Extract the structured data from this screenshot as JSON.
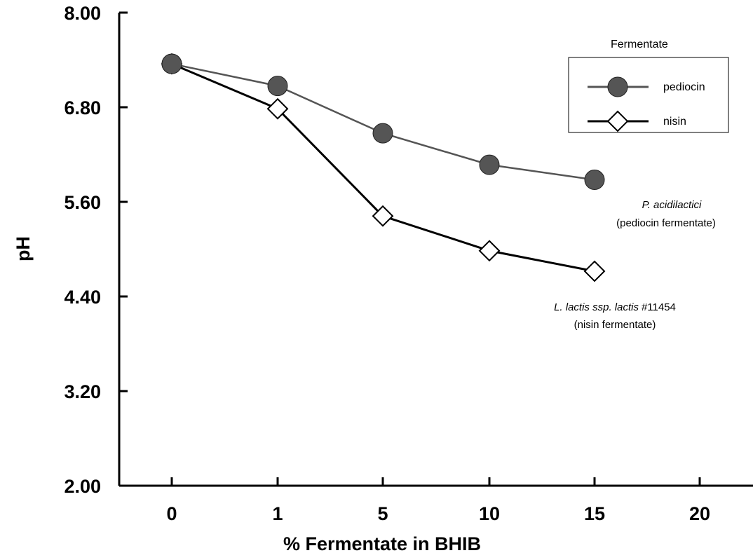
{
  "chart_data": {
    "type": "line",
    "xlabel": "% Fermentate in BHIB",
    "ylabel": "pH",
    "categories": [
      "0",
      "1",
      "5",
      "10",
      "15",
      "20"
    ],
    "ylim": [
      2.0,
      8.0
    ],
    "y_ticks": [
      "8.00",
      "6.80",
      "5.60",
      "4.40",
      "3.20",
      "2.00"
    ],
    "grid": false,
    "legend": {
      "title": "Fermentate",
      "placement": "top-right",
      "entries": [
        "pediocin",
        "nisin"
      ]
    },
    "series": [
      {
        "name": "pediocin",
        "marker": "circle",
        "color": "#555555",
        "x": [
          "0",
          "1",
          "5",
          "10",
          "15"
        ],
        "values": [
          7.35,
          7.07,
          6.47,
          6.07,
          5.88
        ]
      },
      {
        "name": "nisin",
        "marker": "diamond",
        "color": "#000000",
        "x": [
          "0",
          "1",
          "5",
          "10",
          "15"
        ],
        "values": [
          7.35,
          6.78,
          5.42,
          4.98,
          4.72
        ]
      }
    ],
    "annotations": [
      {
        "lines": [
          "P. acidilactici",
          "(pediocin fermentate)"
        ],
        "italic_line": 0
      },
      {
        "lines": [
          "L. lactis ssp. lactis",
          "#11454",
          "(nisin fermentate)"
        ]
      }
    ]
  }
}
